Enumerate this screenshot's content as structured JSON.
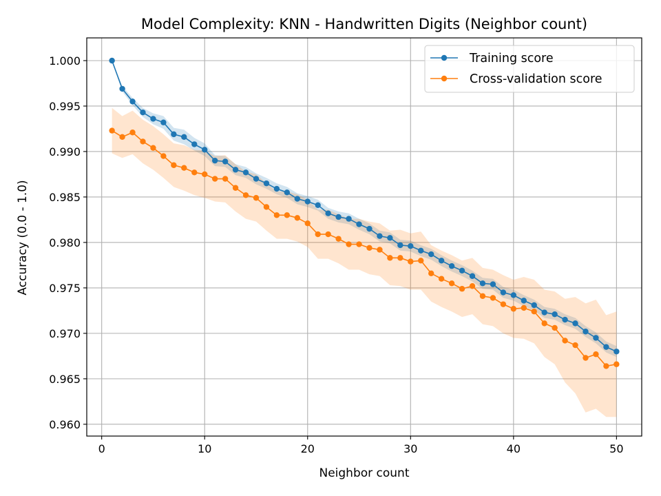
{
  "chart_data": {
    "type": "line",
    "title": "Model Complexity: KNN - Handwritten Digits (Neighbor count)",
    "xlabel": "Neighbor count",
    "ylabel": "Accuracy (0.0 - 1.0)",
    "xlim": [
      -1.45,
      52.45
    ],
    "ylim": [
      0.9587,
      1.0025
    ],
    "xticks": [
      0,
      10,
      20,
      30,
      40,
      50
    ],
    "xtick_labels": [
      "0",
      "10",
      "20",
      "30",
      "40",
      "50"
    ],
    "yticks": [
      0.96,
      0.965,
      0.97,
      0.975,
      0.98,
      0.985,
      0.99,
      0.995,
      1.0
    ],
    "ytick_labels": [
      "0.960",
      "0.965",
      "0.970",
      "0.975",
      "0.980",
      "0.985",
      "0.990",
      "0.995",
      "1.000"
    ],
    "grid": true,
    "legend_position": "top-right",
    "x": [
      1,
      2,
      3,
      4,
      5,
      6,
      7,
      8,
      9,
      10,
      11,
      12,
      13,
      14,
      15,
      16,
      17,
      18,
      19,
      20,
      21,
      22,
      23,
      24,
      25,
      26,
      27,
      28,
      29,
      30,
      31,
      32,
      33,
      34,
      35,
      36,
      37,
      38,
      39,
      40,
      41,
      42,
      43,
      44,
      45,
      46,
      47,
      48,
      49,
      50
    ],
    "series": [
      {
        "name": "Training score",
        "color": "#1f77b4",
        "band_color": "#1f77b4",
        "values": [
          1.0,
          0.9969,
          0.9955,
          0.9943,
          0.9936,
          0.9932,
          0.9919,
          0.9916,
          0.9908,
          0.9902,
          0.989,
          0.9889,
          0.988,
          0.9877,
          0.987,
          0.9865,
          0.9859,
          0.9855,
          0.9848,
          0.9845,
          0.9841,
          0.9832,
          0.9828,
          0.9826,
          0.982,
          0.9815,
          0.9807,
          0.9805,
          0.9797,
          0.9796,
          0.9791,
          0.9787,
          0.978,
          0.9774,
          0.9769,
          0.9763,
          0.9755,
          0.9754,
          0.9745,
          0.9742,
          0.9736,
          0.9731,
          0.9723,
          0.9721,
          0.9715,
          0.9711,
          0.9702,
          0.9695,
          0.9685,
          0.968
        ],
        "band_halfwidth": [
          0.0,
          0.0003,
          0.0004,
          0.0005,
          0.0006,
          0.0007,
          0.0007,
          0.0008,
          0.0007,
          0.0007,
          0.0006,
          0.0006,
          0.0006,
          0.0006,
          0.0006,
          0.0006,
          0.0006,
          0.0006,
          0.0006,
          0.0006,
          0.0006,
          0.0006,
          0.0006,
          0.0006,
          0.0006,
          0.0006,
          0.0006,
          0.0006,
          0.0006,
          0.0006,
          0.0006,
          0.0006,
          0.0006,
          0.0006,
          0.0006,
          0.0006,
          0.0006,
          0.0006,
          0.0006,
          0.0006,
          0.0006,
          0.0006,
          0.0006,
          0.0006,
          0.0006,
          0.0006,
          0.0006,
          0.0006,
          0.0006,
          0.0006
        ]
      },
      {
        "name": "Cross-validation score",
        "color": "#ff7f0e",
        "band_color": "#ff7f0e",
        "values": [
          0.9923,
          0.9916,
          0.9921,
          0.9911,
          0.9904,
          0.9895,
          0.9885,
          0.9882,
          0.9877,
          0.9875,
          0.987,
          0.987,
          0.986,
          0.9852,
          0.9849,
          0.9839,
          0.983,
          0.983,
          0.9827,
          0.9821,
          0.9809,
          0.9809,
          0.9804,
          0.9798,
          0.9798,
          0.9794,
          0.9792,
          0.9783,
          0.9783,
          0.9779,
          0.978,
          0.9766,
          0.976,
          0.9755,
          0.9749,
          0.9752,
          0.9741,
          0.9739,
          0.9732,
          0.9727,
          0.9728,
          0.9724,
          0.9711,
          0.9706,
          0.9692,
          0.9687,
          0.9673,
          0.9677,
          0.9664,
          0.9666
        ],
        "band_halfwidth": [
          0.0025,
          0.0023,
          0.0024,
          0.0024,
          0.0024,
          0.0024,
          0.0024,
          0.0025,
          0.0025,
          0.0026,
          0.0025,
          0.0026,
          0.0026,
          0.0026,
          0.0026,
          0.0026,
          0.0026,
          0.0026,
          0.0026,
          0.0026,
          0.0027,
          0.0027,
          0.0027,
          0.0028,
          0.0028,
          0.0029,
          0.0029,
          0.003,
          0.0031,
          0.0031,
          0.0032,
          0.0031,
          0.0031,
          0.0031,
          0.0031,
          0.0031,
          0.0031,
          0.0031,
          0.0032,
          0.0032,
          0.0034,
          0.0035,
          0.0037,
          0.004,
          0.0046,
          0.0053,
          0.006,
          0.006,
          0.0056,
          0.0058
        ]
      }
    ]
  }
}
